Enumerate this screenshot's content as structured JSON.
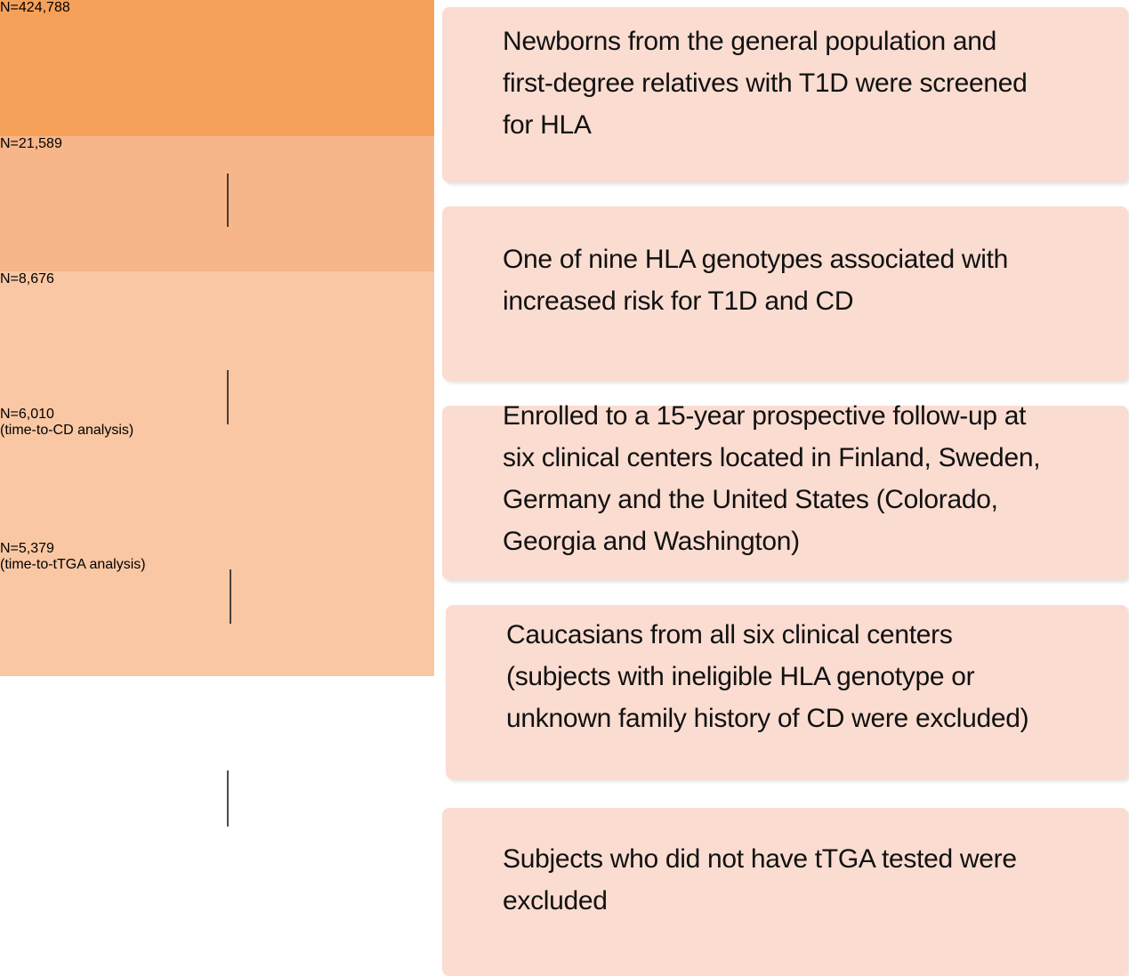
{
  "nodes": [
    {
      "label": [
        "N=424,788"
      ],
      "description": [
        "Newborns from the general population and",
        "first-degree relatives with T1D were screened",
        "for HLA"
      ]
    },
    {
      "label": [
        "N=21,589"
      ],
      "description": [
        "One of nine HLA genotypes associated with",
        "increased risk for T1D and CD"
      ]
    },
    {
      "label": [
        "N=8,676"
      ],
      "description": [
        "Enrolled to a 15-year prospective follow-up at",
        "six clinical centers located in Finland, Sweden,",
        "Germany and the United States (Colorado,",
        "Georgia and Washington)"
      ]
    },
    {
      "label": [
        "N=6,010",
        "(time-to-CD analysis)"
      ],
      "description": [
        "Caucasians from all six clinical centers",
        "(subjects with ineligible HLA genotype or",
        "unknown family history of CD were excluded)"
      ]
    },
    {
      "label": [
        "N=5,379",
        "(time-to-tTGA analysis)"
      ],
      "description": [
        "Subjects who did not have tTGA tested were",
        "excluded"
      ]
    }
  ]
}
